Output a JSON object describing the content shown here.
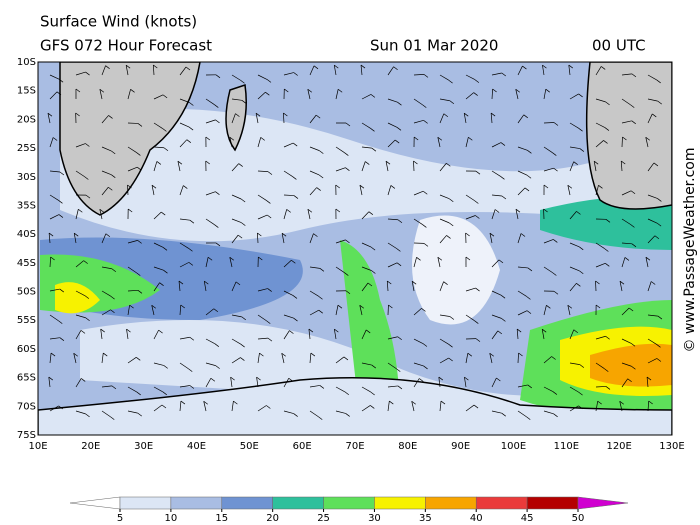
{
  "header": {
    "title": "Surface Wind (knots)",
    "model": "GFS 072 Hour Forecast",
    "date": "Sun 01 Mar 2020",
    "time": "00 UTC"
  },
  "map": {
    "lat_labels": [
      "10S",
      "15S",
      "20S",
      "25S",
      "30S",
      "35S",
      "40S",
      "45S",
      "50S",
      "55S",
      "60S",
      "65S",
      "70S",
      "75S"
    ],
    "lon_labels": [
      "10E",
      "20E",
      "30E",
      "40E",
      "50E",
      "60E",
      "70E",
      "80E",
      "90E",
      "100E",
      "110E",
      "120E",
      "130E"
    ]
  },
  "colorbar": {
    "ticks": [
      5,
      10,
      15,
      20,
      25,
      30,
      35,
      40,
      45,
      50
    ],
    "colors": [
      "#ffffff",
      "#dce6f5",
      "#a9bde3",
      "#6f93d2",
      "#2ec09c",
      "#5ee05a",
      "#f7f200",
      "#f7a500",
      "#ea3b3b",
      "#b40000",
      "#d000d0"
    ]
  },
  "watermark": "© www.PassageWeather.com"
}
